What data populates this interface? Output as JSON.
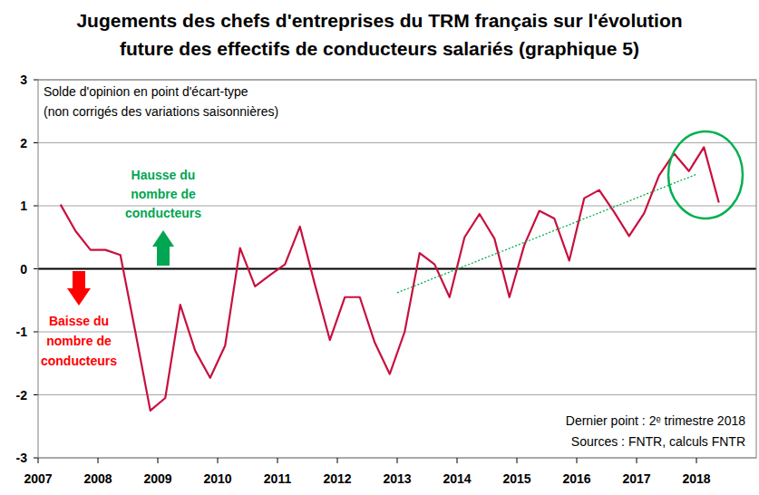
{
  "chart_data": {
    "type": "line",
    "title": [
      "Jugements des chefs d'entreprises du TRM français sur l'évolution",
      "future des effectifs de conducteurs salariés (graphique 5)"
    ],
    "subtitle": [
      "Solde d'opinion en point d'écart-type",
      "(non corrigés des variations saisonnières)"
    ],
    "notes": [
      "Dernier point : 2ᵉ trimestre 2018",
      "Sources : FNTR, calculs FNTR"
    ],
    "annotations": [
      {
        "text": [
          "Hausse du",
          "nombre de",
          "conducteurs"
        ],
        "color": "#00a651"
      },
      {
        "text": [
          "Baisse du",
          "nombre de",
          "conducteurs"
        ],
        "color": "#ff0000"
      }
    ],
    "xlim": [
      2007,
      2019
    ],
    "xticks": [
      2007,
      2008,
      2009,
      2010,
      2011,
      2012,
      2013,
      2014,
      2015,
      2016,
      2017,
      2018
    ],
    "ylim": [
      -3,
      3
    ],
    "yticks": [
      -3,
      -2,
      -1,
      0,
      1,
      2,
      3
    ],
    "grid": true,
    "series": [
      {
        "x": [
          2007.375,
          2007.625,
          2007.875,
          2008.125,
          2008.375,
          2008.625,
          2008.875,
          2009.125,
          2009.375,
          2009.625,
          2009.875,
          2010.125,
          2010.375,
          2010.625,
          2010.875,
          2011.125,
          2011.375,
          2011.625,
          2011.875,
          2012.125,
          2012.375,
          2012.625,
          2012.875,
          2013.125,
          2013.375,
          2013.625,
          2013.875,
          2014.125,
          2014.375,
          2014.625,
          2014.875,
          2015.125,
          2015.375,
          2015.625,
          2015.875,
          2016.125,
          2016.375,
          2016.625,
          2016.875,
          2017.125,
          2017.375,
          2017.625,
          2017.875,
          2018.125,
          2018.375
        ],
        "values": [
          1.02,
          0.6,
          0.3,
          0.3,
          0.22,
          -1.0,
          -2.25,
          -2.05,
          -0.57,
          -1.3,
          -1.73,
          -1.22,
          0.33,
          -0.28,
          -0.1,
          0.07,
          0.67,
          -0.25,
          -1.13,
          -0.45,
          -0.45,
          -1.17,
          -1.67,
          -1.0,
          0.25,
          0.07,
          -0.45,
          0.5,
          0.87,
          0.48,
          -0.45,
          0.38,
          0.92,
          0.8,
          0.13,
          1.12,
          1.25,
          0.9,
          0.52,
          0.88,
          1.48,
          1.83,
          1.55,
          1.93,
          1.05
        ],
        "color": "#c8103e",
        "line_style": "solid"
      },
      {
        "x": [
          2013.0,
          2018.0
        ],
        "values": [
          -0.38,
          1.5
        ],
        "color": "#00b050",
        "line_style": "dotted"
      }
    ]
  }
}
